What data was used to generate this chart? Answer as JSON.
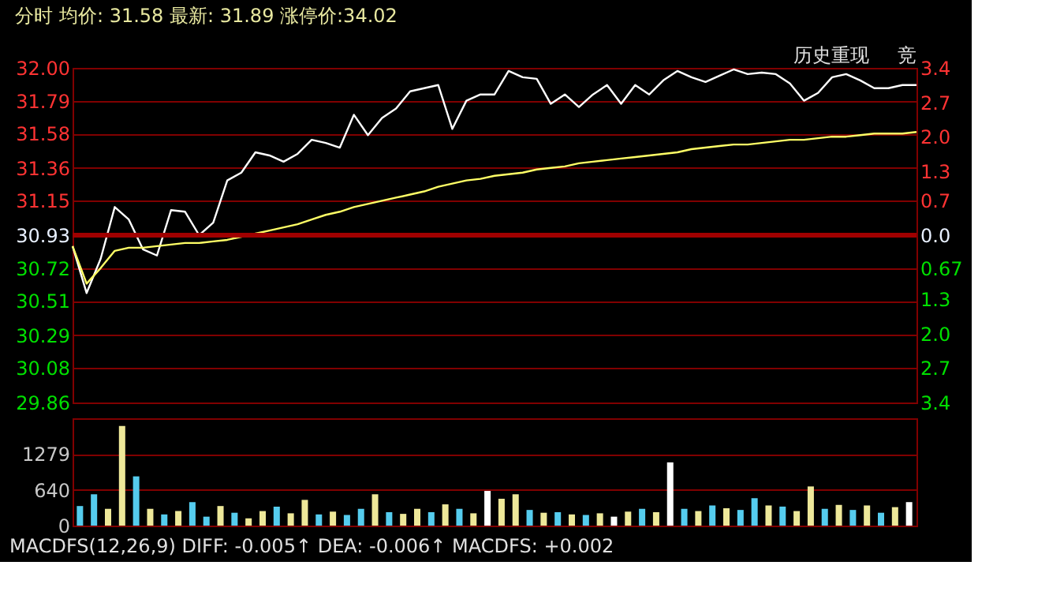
{
  "chart_data": [
    {
      "type": "line",
      "title": "分时 均价: 31.58 最新: 31.89 涨停价:34.02",
      "annotations": [
        "历史重现",
        "竞"
      ],
      "categories": [
        null,
        null,
        null,
        null,
        null,
        null,
        null,
        null,
        null,
        null,
        null,
        null,
        null,
        null,
        null,
        null,
        null,
        null,
        null,
        null,
        null,
        null,
        null,
        null,
        null,
        null,
        null,
        null,
        null,
        null,
        null,
        null,
        null,
        null,
        null,
        null,
        null,
        null,
        null,
        null,
        null,
        null,
        null,
        null,
        null,
        null,
        null,
        null,
        null,
        null,
        null,
        null,
        null,
        null,
        null,
        null,
        null,
        null,
        null,
        null,
        null
      ],
      "series": [
        {
          "color": "#ffffff",
          "values": [
            30.86,
            30.56,
            30.78,
            31.11,
            31.03,
            30.84,
            30.8,
            31.09,
            31.08,
            30.93,
            31.01,
            31.28,
            31.33,
            31.46,
            31.44,
            31.4,
            31.45,
            31.54,
            31.52,
            31.49,
            31.7,
            31.57,
            31.68,
            31.74,
            31.85,
            31.87,
            31.89,
            31.61,
            31.79,
            31.83,
            31.83,
            31.98,
            31.94,
            31.93,
            31.77,
            31.83,
            31.75,
            31.83,
            31.89,
            31.77,
            31.89,
            31.83,
            31.92,
            31.98,
            31.94,
            31.91,
            31.95,
            31.99,
            31.96,
            31.97,
            31.96,
            31.9,
            31.79,
            31.84,
            31.94,
            31.96,
            31.92,
            31.87,
            31.87,
            31.89,
            31.89
          ]
        },
        {
          "color": "#ffff66",
          "values": [
            30.86,
            30.62,
            30.72,
            30.83,
            30.85,
            30.85,
            30.86,
            30.87,
            30.88,
            30.88,
            30.89,
            30.9,
            30.92,
            30.94,
            30.96,
            30.98,
            31.0,
            31.03,
            31.06,
            31.08,
            31.11,
            31.13,
            31.15,
            31.17,
            31.19,
            31.21,
            31.24,
            31.26,
            31.28,
            31.29,
            31.31,
            31.32,
            31.33,
            31.35,
            31.36,
            31.37,
            31.39,
            31.4,
            31.41,
            31.42,
            31.43,
            31.44,
            31.45,
            31.46,
            31.48,
            31.49,
            31.5,
            31.51,
            31.51,
            31.52,
            31.53,
            31.54,
            31.54,
            31.55,
            31.56,
            31.56,
            31.57,
            31.58,
            31.58,
            31.58,
            31.59
          ]
        }
      ],
      "ylim": [
        29.86,
        32.0
      ],
      "yticks": [
        {
          "value": 32.0,
          "label": "32.00"
        },
        31.79,
        31.58,
        31.36,
        31.15,
        30.93,
        30.72,
        30.51,
        30.29,
        30.08,
        29.86
      ],
      "y2lim": [
        -3.4,
        3.4
      ],
      "y2ticks": [
        3.4,
        2.7,
        {
          "value": 2.0,
          "label": "2.0"
        },
        1.3,
        0.7,
        {
          "value": 0,
          "label": "0.0"
        },
        {
          "value": -0.67,
          "label": "0.67"
        },
        {
          "value": -1.3,
          "label": "1.3"
        },
        {
          "value": -2.0,
          "label": "2.0"
        },
        {
          "value": -2.7,
          "label": "2.7"
        },
        {
          "value": -3.4,
          "label": "3.4"
        }
      ],
      "ref_lines": [
        {
          "axis": "y2",
          "value": 0,
          "color": "#a00000"
        }
      ],
      "grid": "y",
      "tick_labels": "y"
    },
    {
      "type": "bar",
      "annotations": [
        "MACDFS(12,26,9) DIFF: -0.005↑ DEA: -0.006↑ MACDFS: +0.002"
      ],
      "categories": [
        null,
        null,
        null,
        null,
        null,
        null,
        null,
        null,
        null,
        null,
        null,
        null,
        null,
        null,
        null,
        null,
        null,
        null,
        null,
        null,
        null,
        null,
        null,
        null,
        null,
        null,
        null,
        null,
        null,
        null,
        null,
        null,
        null,
        null,
        null,
        null,
        null,
        null,
        null,
        null,
        null,
        null,
        null,
        null,
        null,
        null,
        null,
        null,
        null,
        null,
        null,
        null,
        null,
        null,
        null,
        null,
        null,
        null,
        null,
        null
      ],
      "values": [
        350,
        560,
        300,
        1780,
        880,
        300,
        200,
        260,
        420,
        160,
        350,
        230,
        130,
        260,
        340,
        220,
        460,
        200,
        250,
        190,
        300,
        560,
        240,
        210,
        300,
        240,
        380,
        300,
        220,
        620,
        480,
        560,
        280,
        230,
        240,
        200,
        190,
        220,
        160,
        250,
        300,
        240,
        1130,
        300,
        260,
        360,
        310,
        280,
        490,
        360,
        340,
        260,
        700,
        300,
        370,
        280,
        360,
        230,
        330,
        420
      ],
      "colors": [
        "#55ccee",
        "#55ccee",
        "#eee899",
        "#eee899",
        "#55ccee",
        "#eee899",
        "#55ccee",
        "#eee899",
        "#55ccee",
        "#55ccee",
        "#eee899",
        "#55ccee",
        "#eee899",
        "#eee899",
        "#55ccee",
        "#eee899",
        "#eee899",
        "#55ccee",
        "#eee899",
        "#55ccee",
        "#55ccee",
        "#eee899",
        "#55ccee",
        "#eee899",
        "#eee899",
        "#55ccee",
        "#eee899",
        "#55ccee",
        "#eee899",
        "#ffffff",
        "#eee899",
        "#eee899",
        "#55ccee",
        "#eee899",
        "#55ccee",
        "#eee899",
        "#55ccee",
        "#eee899",
        "#ffffff",
        "#eee899",
        "#55ccee",
        "#eee899",
        "#ffffff",
        "#55ccee",
        "#eee899",
        "#55ccee",
        "#eee899",
        "#55ccee",
        "#55ccee",
        "#eee899",
        "#55ccee",
        "#eee899",
        "#eee899",
        "#55ccee",
        "#eee899",
        "#55ccee",
        "#eee899",
        "#55ccee",
        "#eee899",
        "#ffffff"
      ],
      "ylim": [
        0,
        1918
      ],
      "yticks": [
        0,
        640,
        1279
      ],
      "grid": "y",
      "tick_labels": "y"
    }
  ]
}
